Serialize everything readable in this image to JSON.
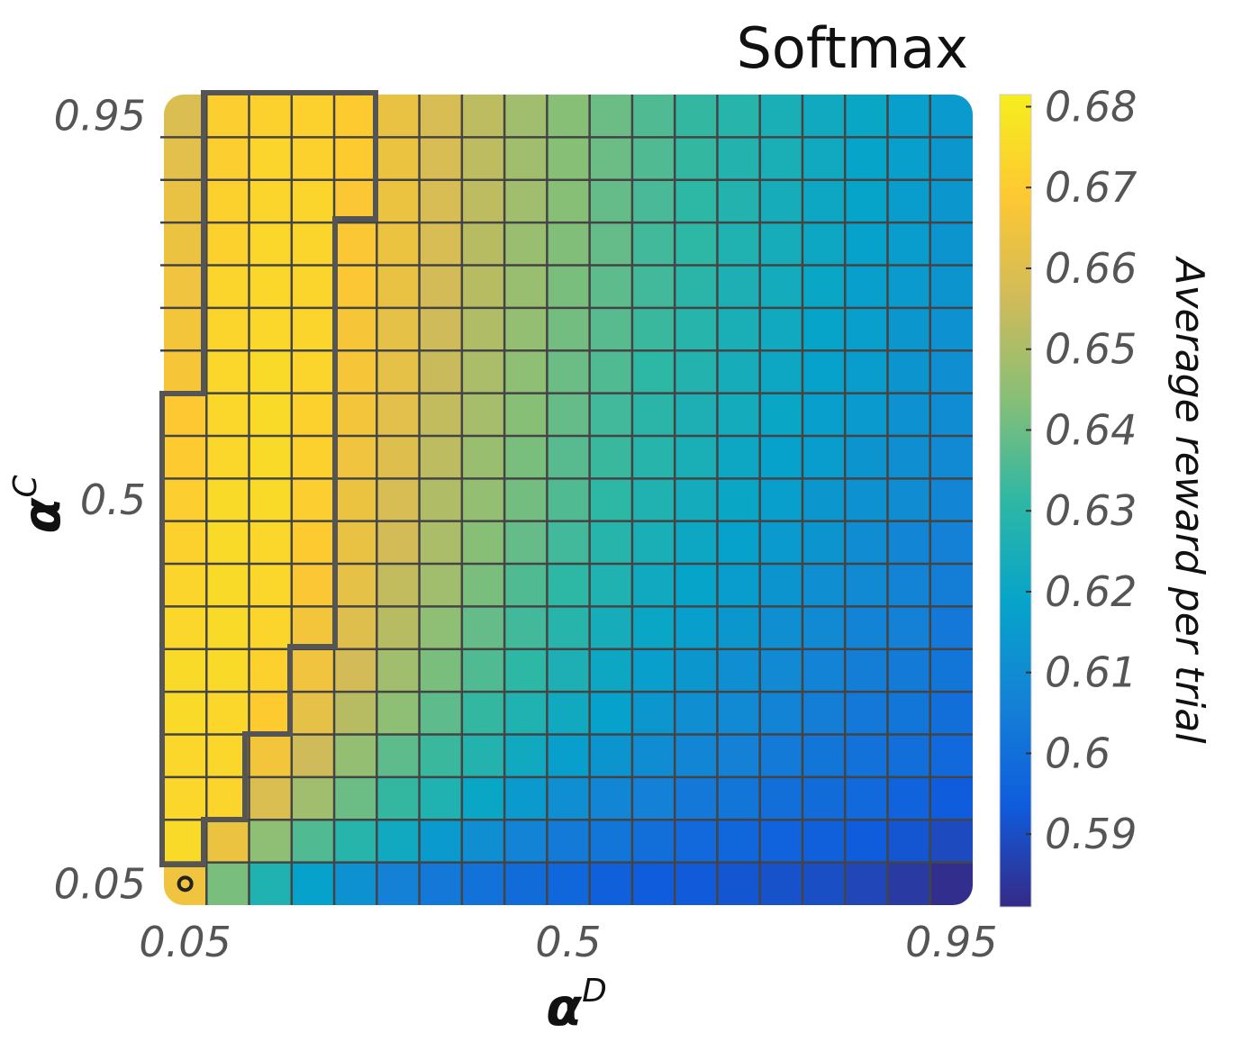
{
  "chart_data": {
    "type": "heatmap",
    "title": "Softmax",
    "xlabel": {
      "text": "α",
      "sup": "D"
    },
    "ylabel": {
      "text": "α",
      "sup": "C"
    },
    "colorbar_label": "Average reward per trial",
    "colormap": "parula",
    "x": [
      0.05,
      0.1,
      0.15,
      0.2,
      0.25,
      0.3,
      0.35,
      0.4,
      0.45,
      0.5,
      0.55,
      0.6,
      0.65,
      0.7,
      0.75,
      0.8,
      0.85,
      0.9,
      0.95
    ],
    "y": [
      0.05,
      0.1,
      0.15,
      0.2,
      0.25,
      0.3,
      0.35,
      0.4,
      0.45,
      0.5,
      0.55,
      0.6,
      0.65,
      0.7,
      0.75,
      0.8,
      0.85,
      0.9,
      0.95
    ],
    "xlim": [
      0.025,
      0.975
    ],
    "ylim": [
      0.025,
      0.975
    ],
    "xticks": [
      0.05,
      0.5,
      0.95
    ],
    "yticks": [
      0.05,
      0.5,
      0.95
    ],
    "clim": [
      0.581,
      0.6815
    ],
    "cticks": [
      0.59,
      0.6,
      0.61,
      0.62,
      0.63,
      0.64,
      0.65,
      0.66,
      0.67,
      0.68
    ],
    "marker": {
      "x": 0.05,
      "y": 0.05
    },
    "z": [
      [
        0.665,
        0.642,
        0.627,
        0.618,
        0.612,
        0.606,
        0.603,
        0.601,
        0.599,
        0.597,
        0.595,
        0.594,
        0.593,
        0.592,
        0.591,
        0.59,
        0.588,
        0.585,
        0.582
      ],
      [
        0.675,
        0.664,
        0.645,
        0.636,
        0.629,
        0.622,
        0.615,
        0.611,
        0.607,
        0.604,
        0.602,
        0.6,
        0.598,
        0.597,
        0.596,
        0.595,
        0.594,
        0.592,
        0.589
      ],
      [
        0.674,
        0.673,
        0.659,
        0.648,
        0.64,
        0.632,
        0.627,
        0.62,
        0.615,
        0.611,
        0.608,
        0.606,
        0.603,
        0.602,
        0.6,
        0.599,
        0.598,
        0.596,
        0.594
      ],
      [
        0.674,
        0.674,
        0.666,
        0.656,
        0.646,
        0.638,
        0.633,
        0.628,
        0.622,
        0.617,
        0.613,
        0.61,
        0.608,
        0.606,
        0.604,
        0.602,
        0.601,
        0.6,
        0.598
      ],
      [
        0.675,
        0.674,
        0.67,
        0.662,
        0.652,
        0.645,
        0.638,
        0.632,
        0.627,
        0.622,
        0.618,
        0.614,
        0.611,
        0.609,
        0.607,
        0.605,
        0.603,
        0.602,
        0.6
      ],
      [
        0.675,
        0.675,
        0.672,
        0.665,
        0.657,
        0.648,
        0.642,
        0.636,
        0.631,
        0.626,
        0.621,
        0.617,
        0.614,
        0.611,
        0.609,
        0.607,
        0.605,
        0.604,
        0.602
      ],
      [
        0.674,
        0.675,
        0.673,
        0.666,
        0.66,
        0.652,
        0.645,
        0.639,
        0.634,
        0.629,
        0.624,
        0.62,
        0.617,
        0.614,
        0.611,
        0.609,
        0.607,
        0.606,
        0.603
      ],
      [
        0.673,
        0.675,
        0.674,
        0.668,
        0.662,
        0.654,
        0.648,
        0.642,
        0.636,
        0.631,
        0.627,
        0.622,
        0.619,
        0.616,
        0.613,
        0.611,
        0.609,
        0.607,
        0.605
      ],
      [
        0.672,
        0.675,
        0.674,
        0.67,
        0.663,
        0.657,
        0.65,
        0.644,
        0.639,
        0.634,
        0.629,
        0.625,
        0.621,
        0.618,
        0.615,
        0.613,
        0.61,
        0.608,
        0.606
      ],
      [
        0.671,
        0.675,
        0.675,
        0.671,
        0.664,
        0.658,
        0.651,
        0.646,
        0.641,
        0.636,
        0.631,
        0.627,
        0.623,
        0.62,
        0.617,
        0.614,
        0.612,
        0.61,
        0.608
      ],
      [
        0.67,
        0.674,
        0.675,
        0.672,
        0.665,
        0.66,
        0.653,
        0.647,
        0.642,
        0.637,
        0.633,
        0.629,
        0.625,
        0.621,
        0.618,
        0.616,
        0.613,
        0.611,
        0.609
      ],
      [
        0.669,
        0.674,
        0.675,
        0.672,
        0.666,
        0.661,
        0.654,
        0.649,
        0.644,
        0.639,
        0.634,
        0.63,
        0.626,
        0.623,
        0.62,
        0.617,
        0.615,
        0.612,
        0.61
      ],
      [
        0.667,
        0.674,
        0.675,
        0.673,
        0.667,
        0.662,
        0.655,
        0.65,
        0.645,
        0.64,
        0.636,
        0.631,
        0.628,
        0.624,
        0.621,
        0.618,
        0.616,
        0.613,
        0.611
      ],
      [
        0.666,
        0.673,
        0.674,
        0.673,
        0.667,
        0.662,
        0.656,
        0.651,
        0.646,
        0.641,
        0.637,
        0.633,
        0.629,
        0.625,
        0.622,
        0.619,
        0.617,
        0.614,
        0.612
      ],
      [
        0.665,
        0.673,
        0.674,
        0.673,
        0.668,
        0.663,
        0.657,
        0.652,
        0.647,
        0.642,
        0.638,
        0.634,
        0.63,
        0.626,
        0.623,
        0.62,
        0.617,
        0.615,
        0.613
      ],
      [
        0.664,
        0.672,
        0.674,
        0.673,
        0.668,
        0.664,
        0.658,
        0.652,
        0.647,
        0.643,
        0.639,
        0.634,
        0.631,
        0.627,
        0.624,
        0.621,
        0.618,
        0.616,
        0.613
      ],
      [
        0.663,
        0.672,
        0.673,
        0.673,
        0.668,
        0.664,
        0.658,
        0.653,
        0.648,
        0.644,
        0.639,
        0.635,
        0.631,
        0.628,
        0.624,
        0.621,
        0.619,
        0.616,
        0.614
      ],
      [
        0.661,
        0.671,
        0.673,
        0.672,
        0.67,
        0.664,
        0.658,
        0.653,
        0.648,
        0.644,
        0.64,
        0.636,
        0.632,
        0.628,
        0.625,
        0.622,
        0.619,
        0.617,
        0.614
      ],
      [
        0.659,
        0.671,
        0.672,
        0.672,
        0.67,
        0.663,
        0.658,
        0.653,
        0.648,
        0.644,
        0.64,
        0.636,
        0.632,
        0.629,
        0.625,
        0.622,
        0.62,
        0.617,
        0.615
      ]
    ]
  }
}
